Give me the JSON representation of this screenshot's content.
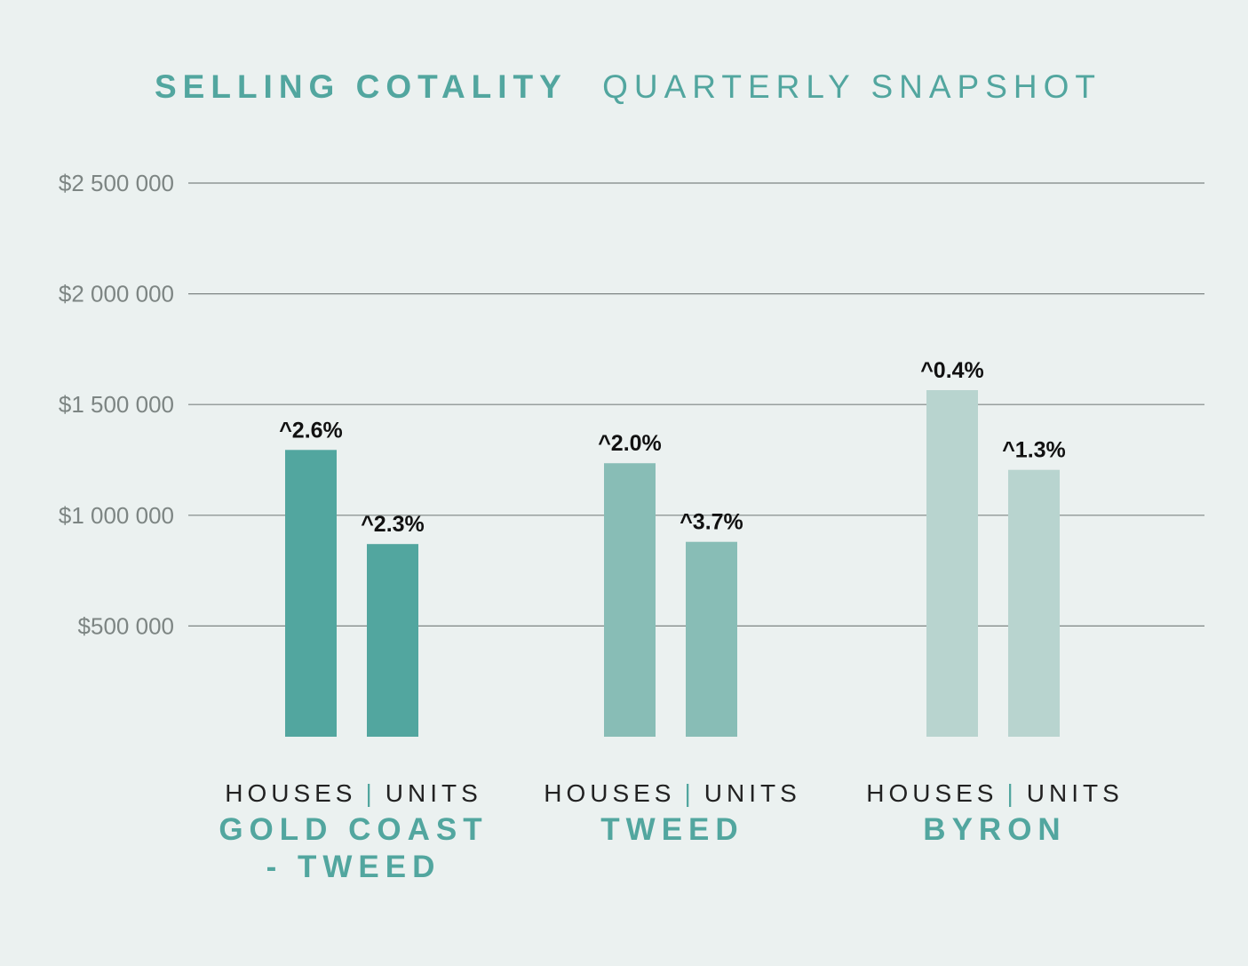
{
  "chart_data": {
    "type": "bar",
    "title_bold": "SELLING COTALITY",
    "title_light": "QUARTERLY SNAPSHOT",
    "ylim": [
      0,
      2500000
    ],
    "y_ticks": [
      {
        "value": 500000,
        "label": "$500 000"
      },
      {
        "value": 1000000,
        "label": "$1 000 000"
      },
      {
        "value": 1500000,
        "label": "$1 500 000"
      },
      {
        "value": 2000000,
        "label": "$2 000 000"
      },
      {
        "value": 2500000,
        "label": "$2 500 000"
      }
    ],
    "grid": true,
    "bar_legend": {
      "left": "HOUSES",
      "separator": "|",
      "right": "UNITS"
    },
    "groups": [
      {
        "name_lines": [
          "GOLD COAST",
          "- TWEED"
        ],
        "color": "#52a69f",
        "bars": [
          {
            "series": "HOUSES",
            "value": 1295000,
            "label": "^2.6%"
          },
          {
            "series": "UNITS",
            "value": 870000,
            "label": "^2.3%"
          }
        ]
      },
      {
        "name_lines": [
          "TWEED"
        ],
        "color": "#88bdb6",
        "bars": [
          {
            "series": "HOUSES",
            "value": 1235000,
            "label": "^2.0%"
          },
          {
            "series": "UNITS",
            "value": 880000,
            "label": "^3.7%"
          }
        ]
      },
      {
        "name_lines": [
          "BYRON"
        ],
        "color": "#b8d4cf",
        "bars": [
          {
            "series": "HOUSES",
            "value": 1565000,
            "label": "^0.4%"
          },
          {
            "series": "UNITS",
            "value": 1205000,
            "label": "^1.3%"
          }
        ]
      }
    ],
    "colors": {
      "background": "#ebf1f0",
      "title": "#52a69f",
      "separator": "#52a69f",
      "grid": "#7d8583",
      "axis_text": "#7d8583",
      "label_text": "#111111",
      "legend_text": "#222222"
    }
  }
}
